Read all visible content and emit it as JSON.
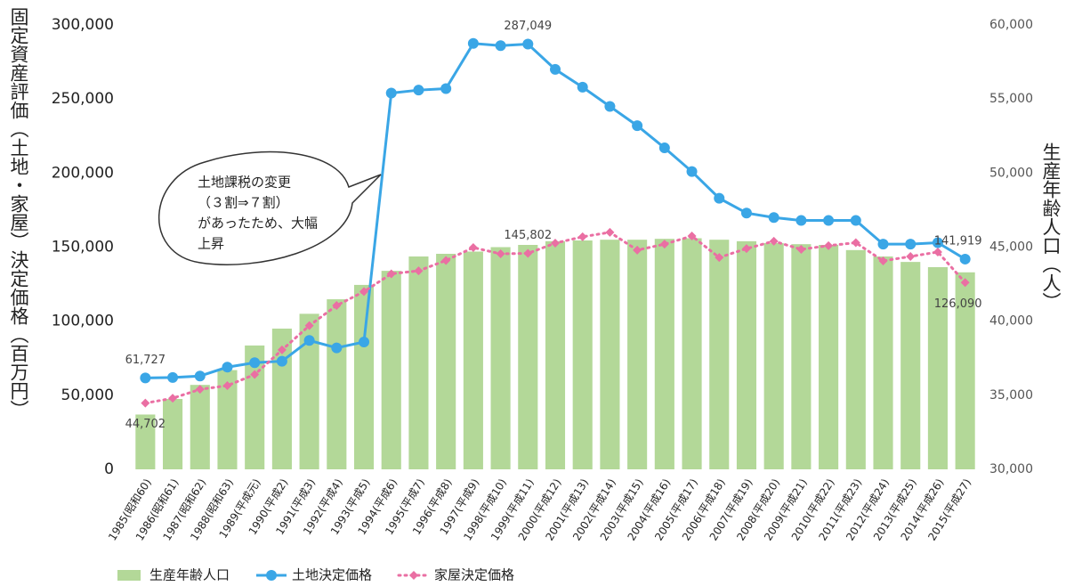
{
  "chart_data": {
    "type": "combo",
    "y_label": "固定資産評価（土地・家屋）決定価格（百万円）",
    "y2_label": "生産年齢人口（人）",
    "categories": [
      "1985(昭和60)",
      "1986(昭和61)",
      "1987(昭和62)",
      "1988(昭和63)",
      "1989(平成元)",
      "1990(平成2)",
      "1991(平成3)",
      "1992(平成4)",
      "1993(平成5)",
      "1994(平成6)",
      "1995(平成7)",
      "1996(平成8)",
      "1997(平成9)",
      "1998(平成10)",
      "1999(平成11)",
      "2000(平成12)",
      "2001(平成13)",
      "2002(平成14)",
      "2003(平成15)",
      "2004(平成16)",
      "2005(平成17)",
      "2006(平成18)",
      "2007(平成19)",
      "2008(平成20)",
      "2009(平成21)",
      "2010(平成22)",
      "2011(平成23)",
      "2012(平成24)",
      "2013(平成25)",
      "2014(平成26)",
      "2015(平成27)"
    ],
    "ylim": [
      0,
      300000
    ],
    "yticks": [
      0,
      {
        "value": 50000,
        "label": "50,000"
      },
      {
        "value": 100000,
        "label": "100,000"
      },
      {
        "value": 150000,
        "label": "150,000"
      },
      {
        "value": 200000,
        "label": "200,000"
      },
      {
        "value": 250000,
        "label": "250,000"
      },
      {
        "value": 300000,
        "label": "300,000"
      }
    ],
    "y2lim": [
      30000,
      60000
    ],
    "y2ticks": [
      {
        "value": 30000,
        "label": "30,000"
      },
      {
        "value": 35000,
        "label": "35,000"
      },
      {
        "value": 40000,
        "label": "40,000"
      },
      {
        "value": 45000,
        "label": "45,000"
      },
      {
        "value": 50000,
        "label": "50,000"
      },
      {
        "value": 55000,
        "label": "55,000"
      },
      {
        "value": 60000,
        "label": "60,000"
      }
    ],
    "series": [
      {
        "name": "生産年齢人口",
        "kind": "bar",
        "axis": "y2",
        "color": "#b3d898",
        "values": [
          33700,
          34750,
          35700,
          36700,
          38360,
          39500,
          40500,
          41480,
          42450,
          43400,
          44370,
          44550,
          44700,
          45000,
          45150,
          45400,
          45450,
          45500,
          45500,
          45560,
          45600,
          45500,
          45400,
          45270,
          45200,
          45150,
          44800,
          44370,
          44000,
          43650,
          43300
        ]
      },
      {
        "name": "土地決定価格",
        "kind": "line",
        "color": "#3aa6e6",
        "values": [
          61727,
          62000,
          63000,
          69000,
          72000,
          73000,
          87000,
          82000,
          86000,
          254000,
          256000,
          257000,
          287500,
          286000,
          287049,
          270000,
          258000,
          245000,
          232000,
          217000,
          201000,
          183000,
          173000,
          170000,
          168000,
          168000,
          168000,
          152000,
          152000,
          153000,
          141919
        ],
        "value_labels": [
          "61,727",
          null,
          null,
          null,
          null,
          null,
          null,
          null,
          null,
          null,
          null,
          null,
          null,
          null,
          "287,049",
          null,
          null,
          null,
          null,
          null,
          null,
          null,
          null,
          null,
          null,
          null,
          null,
          null,
          null,
          null,
          "141,919"
        ]
      },
      {
        "name": "家屋決定価格",
        "kind": "dotted",
        "color": "#ea6fa3",
        "values": [
          44702,
          48000,
          54000,
          56500,
          64000,
          80600,
          97000,
          110600,
          120000,
          132000,
          134000,
          141000,
          149700,
          145500,
          145802,
          152700,
          157000,
          160000,
          148000,
          152000,
          157500,
          143000,
          149000,
          154000,
          148500,
          151000,
          153000,
          140700,
          143700,
          146700,
          126090
        ],
        "value_labels": [
          "44,702",
          null,
          null,
          null,
          null,
          null,
          null,
          null,
          null,
          null,
          null,
          null,
          null,
          null,
          "145,802",
          null,
          null,
          null,
          null,
          null,
          null,
          null,
          null,
          null,
          null,
          null,
          null,
          null,
          null,
          null,
          "126,090"
        ]
      }
    ],
    "annotation": [
      "土地課税の変更",
      "（３割⇒７割）",
      "があったため、大幅",
      "上昇"
    ]
  }
}
